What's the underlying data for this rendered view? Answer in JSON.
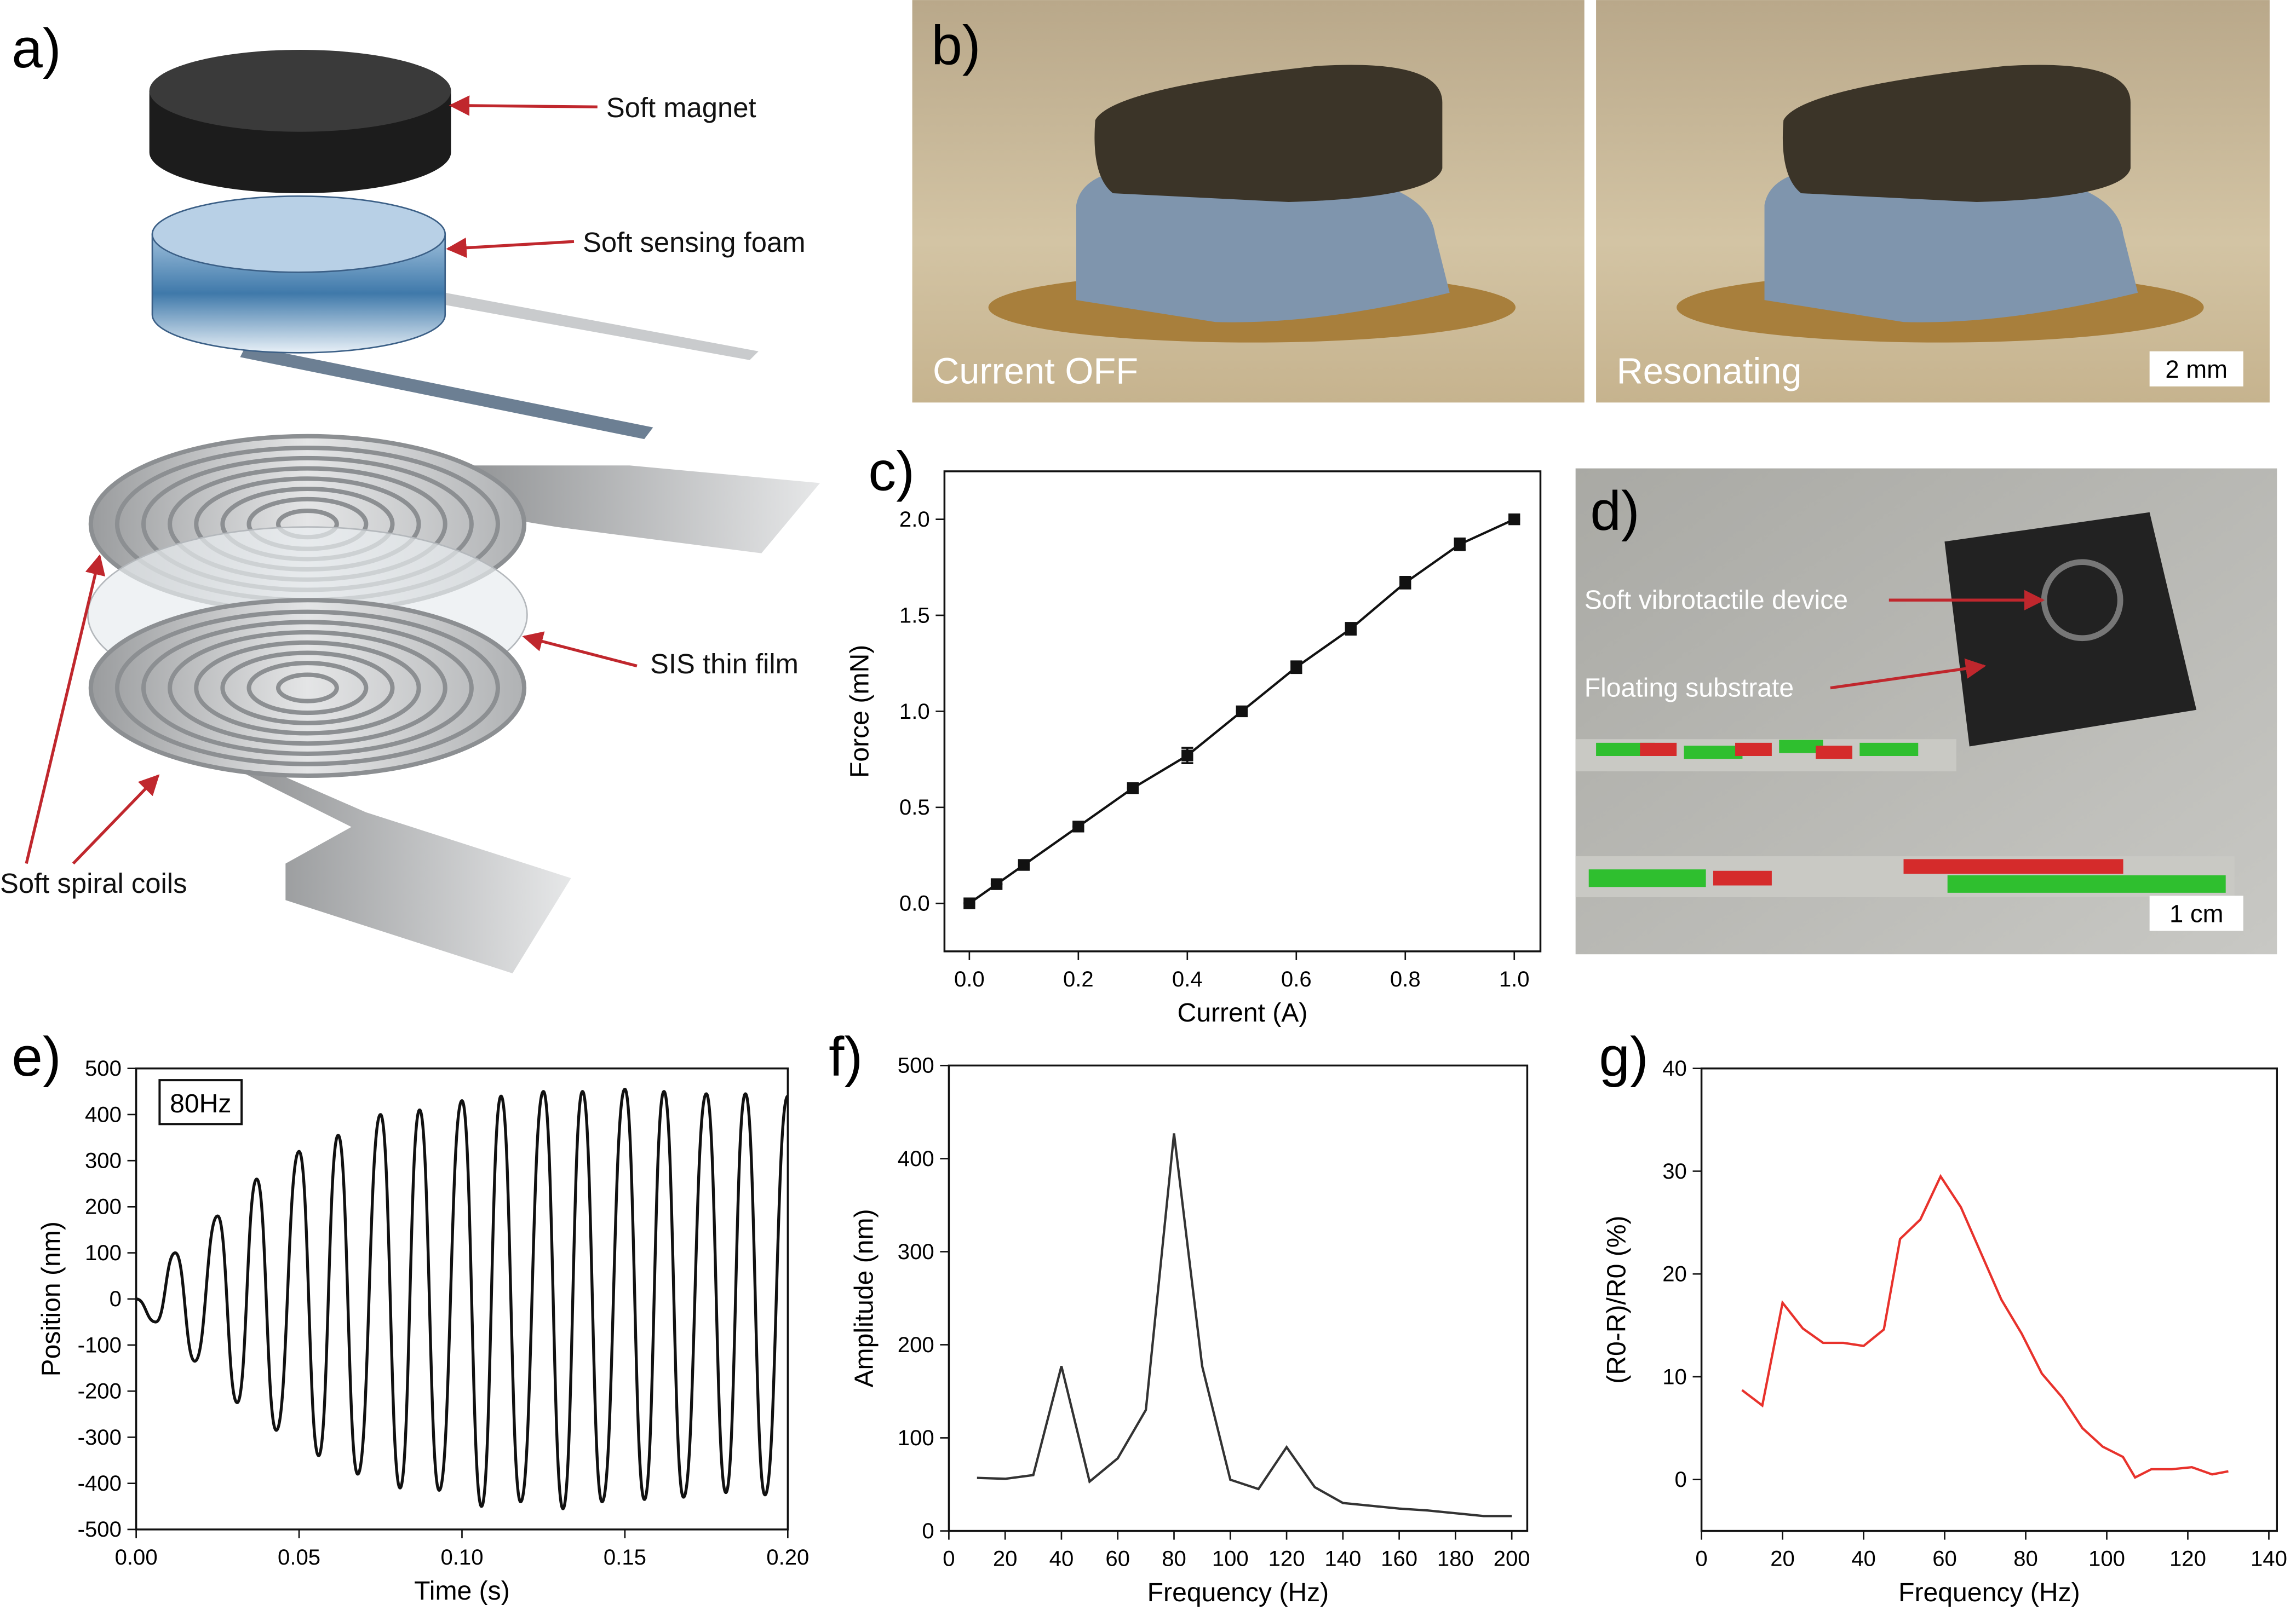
{
  "figure": {
    "panel_labels": [
      "a)",
      "b)",
      "d)"
    ],
    "diagram": {
      "magnet": "Soft magnet",
      "foam": "Soft sensing foam",
      "film": "SIS thin film",
      "coils": "Soft spiral coils"
    },
    "photos": {
      "off": "Current OFF",
      "on": "Resonating",
      "scale": "2 mm"
    },
    "video": {
      "device": "Soft vibrotactile device",
      "substrate": "Floating substrate",
      "scale": "1 cm"
    }
  },
  "chart_data": [
    {
      "type": "line",
      "panel_label": "c)",
      "x_label": "Current (A)",
      "y_label": "Force (mN)",
      "color": "#111111",
      "markers": "square",
      "x": [
        0,
        0.05,
        0.1,
        0.2,
        0.3,
        0.4,
        0.5,
        0.6,
        0.7,
        0.8,
        0.9,
        1.0
      ],
      "values": [
        0,
        0.1,
        0.2,
        0.4,
        0.6,
        0.77,
        1.0,
        1.23,
        1.43,
        1.67,
        1.87,
        2.0
      ],
      "errors": [
        0,
        0,
        0,
        0,
        0,
        0.04,
        0,
        0.03,
        0.03,
        0.03,
        0.03,
        0
      ],
      "xlim": [
        -0.0457,
        1.048
      ],
      "ylim": [
        -0.25,
        2.25
      ],
      "xticks": [
        {
          "value": 0,
          "label": "0.0"
        },
        0.2,
        0.4,
        0.6,
        0.8,
        {
          "value": 1,
          "label": "1.0"
        }
      ],
      "yticks": [
        {
          "value": 0,
          "label": "0.0"
        },
        0.5,
        {
          "value": 1,
          "label": "1.0"
        },
        1.5,
        {
          "value": 2,
          "label": "2.0"
        }
      ]
    },
    {
      "type": "line",
      "panel_label": "e)",
      "x_label": "Time (s)",
      "y_label": "Position (nm)",
      "color": "#111111",
      "annotation": "80Hz",
      "x": [
        0,
        0.006,
        0.012,
        0.018,
        0.025,
        0.031,
        0.037,
        0.043,
        0.05,
        0.056,
        0.062,
        0.068,
        0.075,
        0.081,
        0.087,
        0.093,
        0.1,
        0.106,
        0.112,
        0.118,
        0.125,
        0.131,
        0.137,
        0.143,
        0.15,
        0.156,
        0.162,
        0.168,
        0.175,
        0.181,
        0.187,
        0.193,
        0.2
      ],
      "values": [
        0,
        -50,
        100,
        -135,
        180,
        -225,
        260,
        -285,
        320,
        -340,
        355,
        -380,
        400,
        -410,
        410,
        -415,
        430,
        -450,
        440,
        -440,
        450,
        -455,
        450,
        -440,
        455,
        -435,
        450,
        -430,
        445,
        -420,
        445,
        -425,
        440
      ],
      "xlim": [
        0,
        0.2
      ],
      "ylim": [
        -500,
        500
      ],
      "xticks": [
        {
          "value": 0,
          "label": "0.00"
        },
        0.05,
        {
          "value": 0.1,
          "label": "0.10"
        },
        0.15,
        {
          "value": 0.2,
          "label": "0.20"
        }
      ],
      "yticks": [
        -500,
        -400,
        -300,
        -200,
        -100,
        0,
        100,
        200,
        300,
        400,
        500
      ]
    },
    {
      "type": "line",
      "panel_label": "f)",
      "x_label": "Frequency (Hz)",
      "y_label": "Amplitude (nm)",
      "color": "#333333",
      "x": [
        10,
        20,
        30,
        40,
        50,
        60,
        70,
        80,
        90,
        100,
        110,
        120,
        130,
        140,
        150,
        160,
        170,
        180,
        190,
        200
      ],
      "values": [
        57,
        56,
        60,
        177,
        53,
        78,
        130,
        427,
        177,
        55,
        45,
        90,
        47,
        30,
        27,
        24,
        22,
        19,
        16,
        16
      ],
      "xlim": [
        0,
        205.5
      ],
      "ylim": [
        0,
        500
      ],
      "xticks": [
        0,
        20,
        40,
        60,
        80,
        100,
        120,
        140,
        160,
        180,
        200
      ],
      "yticks": [
        0,
        100,
        200,
        300,
        400,
        500
      ]
    },
    {
      "type": "line",
      "panel_label": "g)",
      "x_label": "Frequency (Hz)",
      "y_label": "(R0-R)/R0 (%)",
      "color": "#e8322c",
      "x": [
        10,
        15,
        20,
        25,
        30,
        35,
        40,
        45,
        49,
        54,
        59,
        64,
        69,
        74,
        79,
        84,
        89,
        94,
        99,
        104,
        107,
        111,
        116,
        121,
        126,
        130
      ],
      "values": [
        8.7,
        7.2,
        17.2,
        14.7,
        13.3,
        13.3,
        13.0,
        14.6,
        23.4,
        25.3,
        29.5,
        26.5,
        22,
        17.5,
        14.2,
        10.3,
        8,
        5,
        3.2,
        2.2,
        0.2,
        1,
        1,
        1.2,
        0.5,
        0.8
      ],
      "xlim": [
        0,
        142
      ],
      "ylim": [
        -5,
        40
      ],
      "xticks": [
        0,
        20,
        40,
        60,
        80,
        100,
        120,
        140
      ],
      "yticks": [
        0,
        10,
        20,
        30,
        40
      ]
    }
  ]
}
